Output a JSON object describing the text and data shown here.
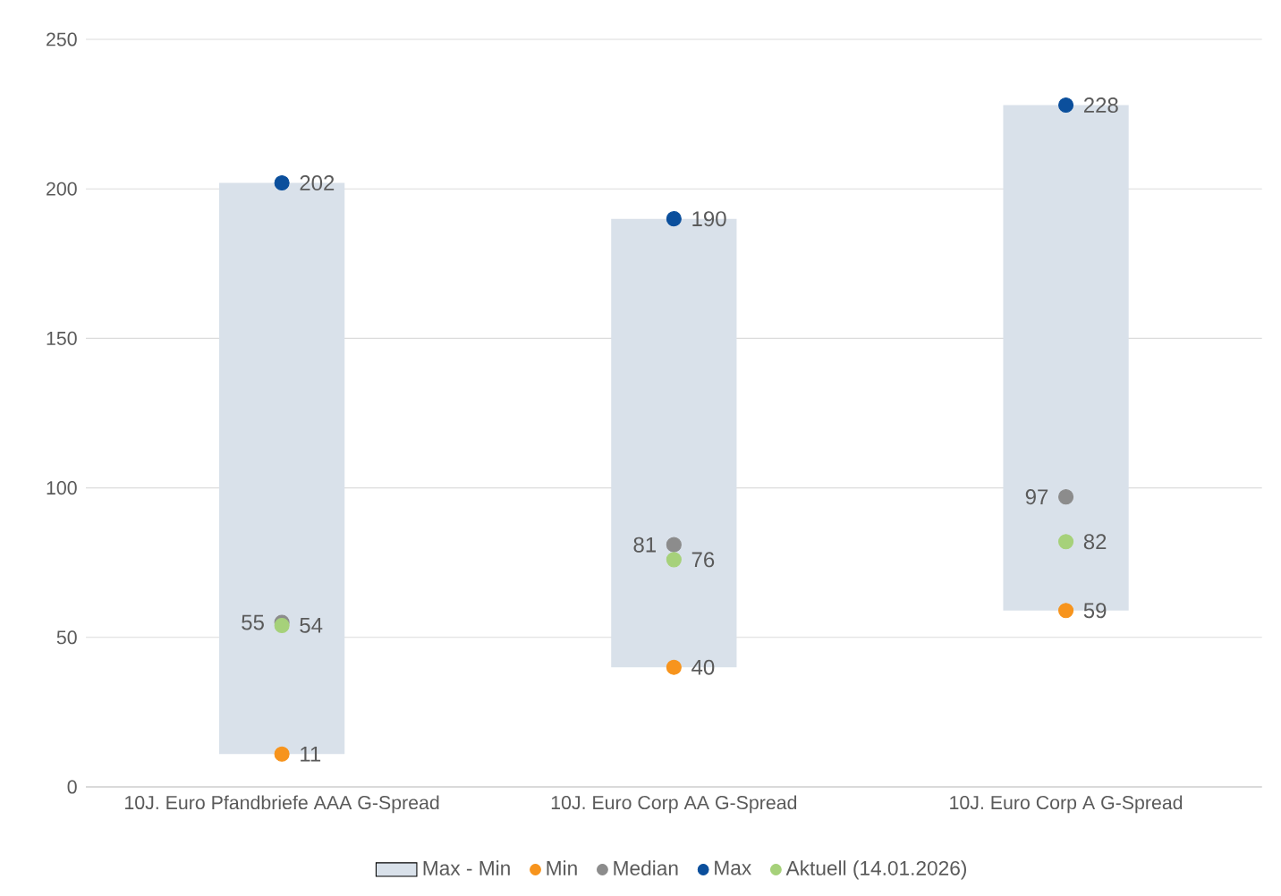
{
  "chart_data": {
    "type": "bar",
    "categories": [
      "10J. Euro Pfandbriefe AAA G-Spread",
      "10J. Euro Corp AA G-Spread",
      "10J. Euro Corp A  G-Spread"
    ],
    "series": [
      {
        "name": "Max - Min",
        "type": "bar",
        "color": "#d9e1ea",
        "base": [
          11,
          40,
          59
        ],
        "values": [
          191,
          150,
          169
        ]
      },
      {
        "name": "Min",
        "type": "scatter",
        "color": "#f7941d",
        "x": [
          "10J. Euro Pfandbriefe AAA G-Spread",
          "10J. Euro Corp AA G-Spread",
          "10J. Euro Corp A  G-Spread"
        ],
        "values": [
          11,
          40,
          59
        ],
        "value_labels": [
          "11",
          "40",
          "59"
        ]
      },
      {
        "name": "Median",
        "type": "scatter",
        "color": "#8c8c8c",
        "x": [
          "10J. Euro Pfandbriefe AAA G-Spread",
          "10J. Euro Corp AA G-Spread",
          "10J. Euro Corp A  G-Spread"
        ],
        "values": [
          55,
          81,
          97
        ],
        "value_labels": [
          "55",
          "81",
          "97"
        ]
      },
      {
        "name": "Max",
        "type": "scatter",
        "color": "#0b4f9c",
        "x": [
          "10J. Euro Pfandbriefe AAA G-Spread",
          "10J. Euro Corp AA G-Spread",
          "10J. Euro Corp A  G-Spread"
        ],
        "values": [
          202,
          190,
          228
        ],
        "value_labels": [
          "202",
          "190",
          "228"
        ]
      },
      {
        "name": "Aktuell (14.01.2026)",
        "type": "scatter",
        "color": "#a6d17a",
        "x": [
          "10J. Euro Pfandbriefe AAA G-Spread",
          "10J. Euro Corp AA G-Spread",
          "10J. Euro Corp A  G-Spread"
        ],
        "values": [
          54,
          76,
          82
        ],
        "value_labels": [
          "54",
          "76",
          "82"
        ]
      }
    ],
    "ylim": [
      0,
      250
    ],
    "yticks": [
      0,
      50,
      100,
      150,
      200,
      250
    ],
    "grid": "y",
    "legend": "bottom",
    "marker": "circle"
  }
}
